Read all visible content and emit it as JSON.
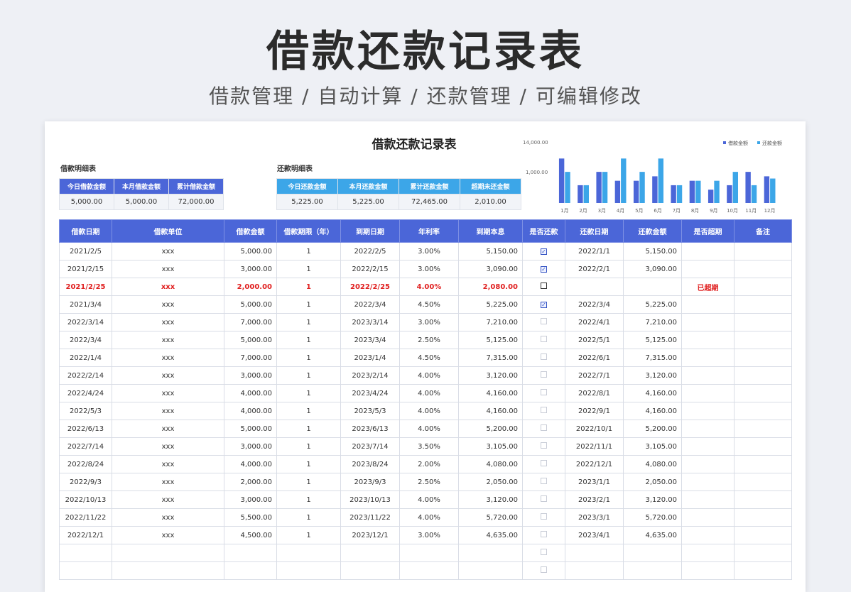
{
  "hero": {
    "title": "借款还款记录表",
    "subtitle": "借款管理 / 自动计算 / 还款管理 / 可编辑修改"
  },
  "sheet": {
    "title": "借款还款记录表"
  },
  "borrow_summary": {
    "label": "借款明细表",
    "headers": [
      "今日借款金额",
      "本月借款金额",
      "累计借款金额"
    ],
    "values": [
      "5,000.00",
      "5,000.00",
      "72,000.00"
    ]
  },
  "repay_summary": {
    "label": "还款明细表",
    "headers": [
      "今日还款金额",
      "本月还款金额",
      "累计还款金额",
      "超期未还金额"
    ],
    "values": [
      "5,225.00",
      "5,225.00",
      "72,465.00",
      "2,010.00"
    ]
  },
  "colors": {
    "borrow": "#4b66d8",
    "repay": "#3ca6e8",
    "overdue": "#e02020"
  },
  "chart_data": {
    "type": "bar",
    "categories": [
      "1月",
      "2月",
      "3月",
      "4月",
      "5月",
      "6月",
      "7月",
      "8月",
      "9月",
      "10月",
      "11月",
      "12月"
    ],
    "series": [
      {
        "name": "借款金额",
        "values": [
          10000,
          4000,
          7000,
          5000,
          5000,
          6000,
          4000,
          5000,
          3000,
          4000,
          7000,
          6000
        ]
      },
      {
        "name": "还款金额",
        "values": [
          7000,
          4000,
          7000,
          10000,
          7000,
          10000,
          4000,
          5000,
          5000,
          7000,
          4000,
          5500
        ]
      }
    ],
    "ylim": [
      0,
      14000
    ],
    "yticks": [
      "14,000.00",
      "1,000.00"
    ],
    "legend_position": "top-right"
  },
  "table": {
    "headers": [
      "借款日期",
      "借款单位",
      "借款金额",
      "借款期限（年）",
      "到期日期",
      "年利率",
      "到期本息",
      "是否还款",
      "还款日期",
      "还款金额",
      "是否超期",
      "备注"
    ],
    "rows": [
      [
        "2021/2/5",
        "xxx",
        "5,000.00",
        "1",
        "2022/2/5",
        "3.00%",
        "5,150.00",
        "✓",
        "2022/1/1",
        "5,150.00",
        "",
        ""
      ],
      [
        "2021/2/15",
        "xxx",
        "3,000.00",
        "1",
        "2022/2/15",
        "3.00%",
        "3,090.00",
        "✓",
        "2022/2/1",
        "3,090.00",
        "",
        ""
      ],
      [
        "2021/2/25",
        "xxx",
        "2,000.00",
        "1",
        "2022/2/25",
        "4.00%",
        "2,080.00",
        "□",
        "",
        "",
        "已超期",
        ""
      ],
      [
        "2021/3/4",
        "xxx",
        "5,000.00",
        "1",
        "2022/3/4",
        "4.50%",
        "5,225.00",
        "✓",
        "2022/3/4",
        "5,225.00",
        "",
        ""
      ],
      [
        "2022/3/14",
        "xxx",
        "7,000.00",
        "1",
        "2023/3/14",
        "3.00%",
        "7,210.00",
        "",
        "2022/4/1",
        "7,210.00",
        "",
        ""
      ],
      [
        "2022/3/4",
        "xxx",
        "5,000.00",
        "1",
        "2023/3/4",
        "2.50%",
        "5,125.00",
        "",
        "2022/5/1",
        "5,125.00",
        "",
        ""
      ],
      [
        "2022/1/4",
        "xxx",
        "7,000.00",
        "1",
        "2023/1/4",
        "4.50%",
        "7,315.00",
        "",
        "2022/6/1",
        "7,315.00",
        "",
        ""
      ],
      [
        "2022/2/14",
        "xxx",
        "3,000.00",
        "1",
        "2023/2/14",
        "4.00%",
        "3,120.00",
        "",
        "2022/7/1",
        "3,120.00",
        "",
        ""
      ],
      [
        "2022/4/24",
        "xxx",
        "4,000.00",
        "1",
        "2023/4/24",
        "4.00%",
        "4,160.00",
        "",
        "2022/8/1",
        "4,160.00",
        "",
        ""
      ],
      [
        "2022/5/3",
        "xxx",
        "4,000.00",
        "1",
        "2023/5/3",
        "4.00%",
        "4,160.00",
        "",
        "2022/9/1",
        "4,160.00",
        "",
        ""
      ],
      [
        "2022/6/13",
        "xxx",
        "5,000.00",
        "1",
        "2023/6/13",
        "4.00%",
        "5,200.00",
        "",
        "2022/10/1",
        "5,200.00",
        "",
        ""
      ],
      [
        "2022/7/14",
        "xxx",
        "3,000.00",
        "1",
        "2023/7/14",
        "3.50%",
        "3,105.00",
        "",
        "2022/11/1",
        "3,105.00",
        "",
        ""
      ],
      [
        "2022/8/24",
        "xxx",
        "4,000.00",
        "1",
        "2023/8/24",
        "2.00%",
        "4,080.00",
        "",
        "2022/12/1",
        "4,080.00",
        "",
        ""
      ],
      [
        "2022/9/3",
        "xxx",
        "2,000.00",
        "1",
        "2023/9/3",
        "2.50%",
        "2,050.00",
        "",
        "2023/1/1",
        "2,050.00",
        "",
        ""
      ],
      [
        "2022/10/13",
        "xxx",
        "3,000.00",
        "1",
        "2023/10/13",
        "4.00%",
        "3,120.00",
        "",
        "2023/2/1",
        "3,120.00",
        "",
        ""
      ],
      [
        "2022/11/22",
        "xxx",
        "5,500.00",
        "1",
        "2023/11/22",
        "4.00%",
        "5,720.00",
        "",
        "2023/3/1",
        "5,720.00",
        "",
        ""
      ],
      [
        "2022/12/1",
        "xxx",
        "4,500.00",
        "1",
        "2023/12/1",
        "3.00%",
        "4,635.00",
        "",
        "2023/4/1",
        "4,635.00",
        "",
        ""
      ],
      [
        "",
        "",
        "",
        "",
        "",
        "",
        "",
        "",
        "",
        "",
        "",
        ""
      ],
      [
        "",
        "",
        "",
        "",
        "",
        "",
        "",
        "",
        "",
        "",
        "",
        ""
      ]
    ],
    "overdue_row_index": 2
  }
}
